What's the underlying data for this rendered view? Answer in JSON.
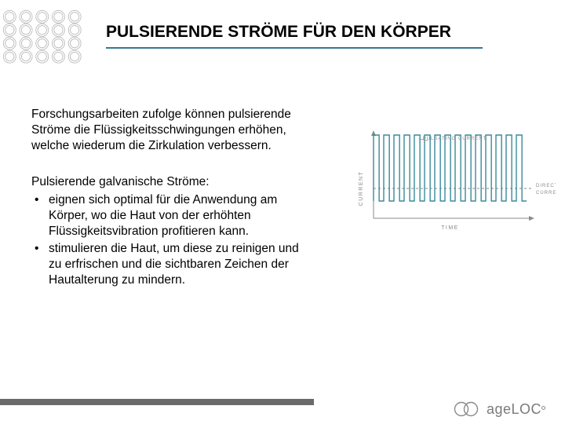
{
  "accent_color": "#367a8f",
  "title": "PULSIERENDE STRÖME FÜR DEN KÖRPER",
  "paragraph1": "Forschungsarbeiten zufolge können pulsierende Ströme die Flüssigkeitsschwingungen erhöhen, welche wiederum die Zirkulation verbessern.",
  "subhead": "Pulsierende galvanische Ströme:",
  "bullets": [
    "eignen sich optimal für die Anwendung am Körper, wo die Haut von der erhöhten Flüssigkeitsvibration profitieren kann.",
    "stimulieren die Haut, um diese zu reinigen und zu erfrischen und die sichtbaren Zeichen der Hautalterung zu mindern."
  ],
  "chart": {
    "type": "line",
    "y_label": "CURRENT",
    "x_label": "TIME",
    "top_label": "PULSATING CURRENT",
    "right_label_top": "DIRECT",
    "right_label_bottom": "CURRENT",
    "line_color": "#3a8a99",
    "axis_color": "#8a8a8a",
    "arrow_color": "#8a8a8a",
    "xlim": [
      0,
      210
    ],
    "ylim": [
      0,
      100
    ],
    "pulse_period": 13,
    "pulse_high_y": 12,
    "pulse_low_y": 96,
    "n_pulses": 15,
    "dc_level_y": 80
  },
  "decor": {
    "ring_stroke": "#b8b8b8",
    "rows": 4,
    "cols": 5,
    "ring_outer_r": 8.5,
    "ring_inner_r": 6,
    "spacing_x": 22,
    "spacing_y": 18,
    "start_x": 12,
    "start_y": 12
  },
  "logo": {
    "text": "ageLOC",
    "rings_stroke": "#8a8a8a"
  }
}
